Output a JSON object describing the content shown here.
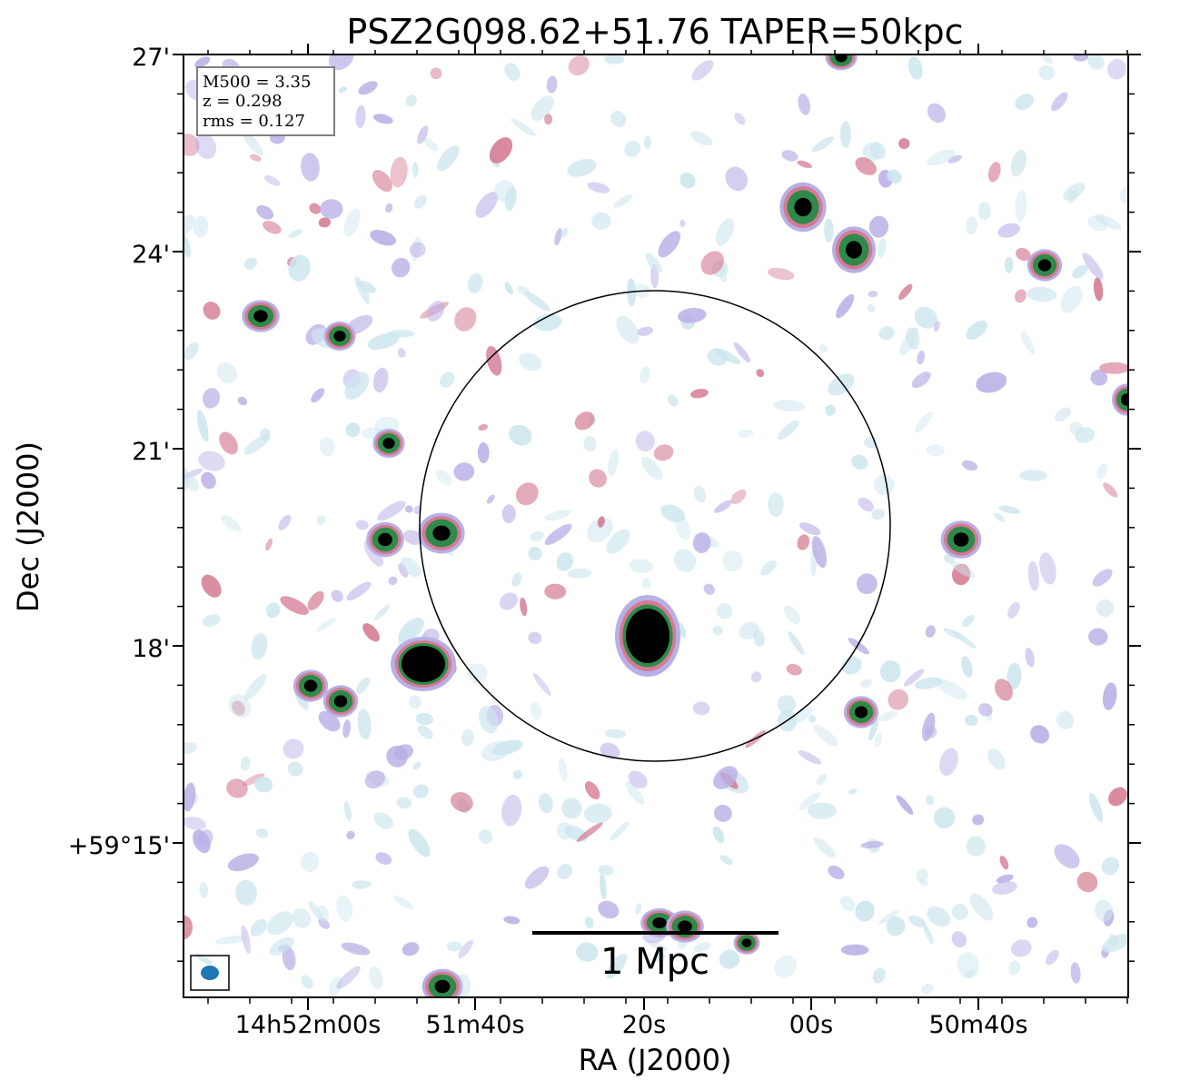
{
  "chart_data": {
    "type": "heatmap",
    "title": "PSZ2G098.62+51.76 TAPER=50kpc",
    "xlabel": "RA (J2000)",
    "ylabel": "Dec (J2000)",
    "x_ticks": [
      "14h52m00s",
      "51m40s",
      "20s",
      "00s",
      "50m40s"
    ],
    "y_ticks": [
      "27'",
      "24'",
      "21'",
      "18'",
      "+59°15'"
    ],
    "info_box": [
      "M500 = 3.35",
      "z = 0.298",
      "rms = 0.127"
    ],
    "scale_bar_label": "1 Mpc",
    "colors": {
      "faint": "#cde6ee",
      "low": "#b9aee6",
      "mid": "#d47a92",
      "high": "#2f8a4a",
      "peak": "#000000",
      "circle": "#000000",
      "beam": "#1f77b4"
    },
    "sources": [
      {
        "id": "s1",
        "level": "peak"
      },
      {
        "id": "s2",
        "level": "high"
      },
      {
        "id": "s3",
        "level": "high"
      },
      {
        "id": "s4",
        "level": "high"
      },
      {
        "id": "s5",
        "level": "high"
      },
      {
        "id": "s6",
        "level": "high"
      },
      {
        "id": "s7",
        "level": "high"
      },
      {
        "id": "s8",
        "level": "high"
      },
      {
        "id": "s9",
        "level": "high"
      },
      {
        "id": "s10",
        "level": "peak"
      },
      {
        "id": "s11",
        "level": "high"
      },
      {
        "id": "s12",
        "level": "high"
      },
      {
        "id": "s13",
        "level": "high"
      },
      {
        "id": "s14",
        "level": "high"
      },
      {
        "id": "s15",
        "level": "high"
      },
      {
        "id": "s16",
        "level": "high"
      },
      {
        "id": "s17",
        "level": "high"
      },
      {
        "id": "s18",
        "level": "high"
      },
      {
        "id": "s19",
        "level": "high"
      },
      {
        "id": "s20",
        "level": "high"
      }
    ]
  }
}
